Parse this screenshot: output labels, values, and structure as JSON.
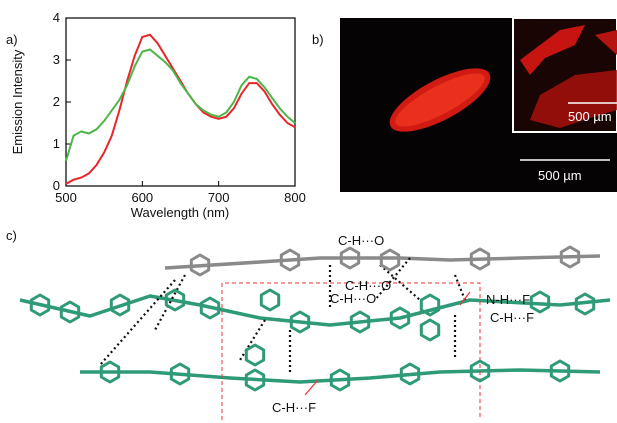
{
  "panel_labels": [
    "a)",
    "b)",
    "c)"
  ],
  "chart_data": {
    "type": "line",
    "x_label": "Wavelength (nm)",
    "y_label": "Emission Intensity",
    "x": [
      500,
      510,
      520,
      530,
      540,
      550,
      560,
      570,
      580,
      590,
      600,
      610,
      620,
      630,
      640,
      650,
      660,
      670,
      680,
      690,
      700,
      710,
      720,
      730,
      740,
      750,
      760,
      770,
      780,
      790,
      800
    ],
    "series": [
      {
        "color": "#e8262a",
        "values": [
          0.05,
          0.15,
          0.2,
          0.3,
          0.5,
          0.8,
          1.2,
          1.8,
          2.5,
          3.1,
          3.55,
          3.6,
          3.4,
          3.1,
          2.8,
          2.5,
          2.2,
          1.95,
          1.75,
          1.65,
          1.6,
          1.65,
          1.85,
          2.2,
          2.45,
          2.45,
          2.25,
          1.95,
          1.7,
          1.5,
          1.4
        ]
      },
      {
        "color": "#4cb648",
        "values": [
          0.6,
          1.2,
          1.3,
          1.25,
          1.35,
          1.55,
          1.8,
          2.05,
          2.4,
          2.85,
          3.2,
          3.25,
          3.1,
          2.95,
          2.75,
          2.45,
          2.2,
          1.95,
          1.8,
          1.7,
          1.65,
          1.75,
          2.0,
          2.4,
          2.6,
          2.55,
          2.35,
          2.1,
          1.85,
          1.65,
          1.5
        ]
      }
    ],
    "xlim": [
      500,
      800
    ],
    "xticks": [
      500,
      600,
      700,
      800
    ],
    "ylim": [
      0,
      4
    ],
    "yticks": [
      0,
      1,
      2,
      3,
      4
    ],
    "grid": false
  },
  "micrograph": {
    "scale_bar": "500 µm",
    "inset_scale_bar": "500 µm"
  },
  "structure": {
    "annotations": [
      "C-H···O",
      "C-H···O",
      "C-H···O",
      "N-H···F",
      "C-H···F",
      "C-H···F"
    ]
  }
}
